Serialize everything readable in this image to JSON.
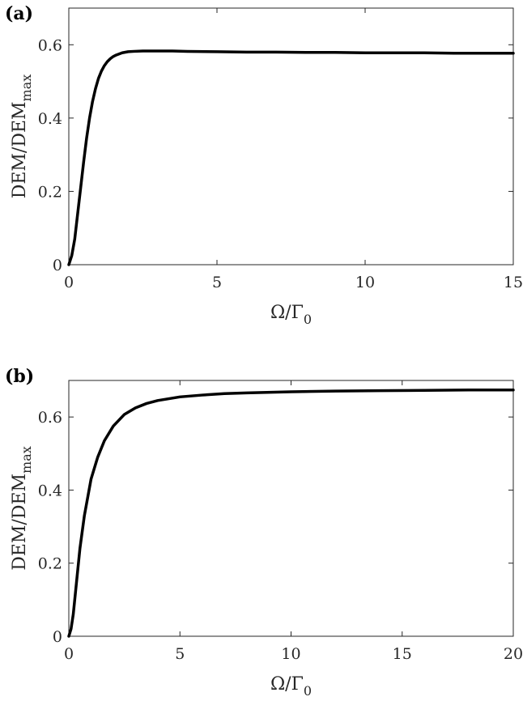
{
  "chart_data": [
    {
      "type": "line",
      "panel_label": "(a)",
      "xlabel": {
        "main": "Ω/Γ",
        "sub": "0"
      },
      "ylabel": {
        "main": "DEM/DEM",
        "sub": "max"
      },
      "xlim": [
        0,
        15
      ],
      "ylim": [
        0,
        0.7
      ],
      "xticks": [
        0,
        5,
        10,
        15
      ],
      "xtick_labels": [
        "0",
        "5",
        "10",
        "15"
      ],
      "yticks": [
        0,
        0.2,
        0.4,
        0.6
      ],
      "ytick_labels": [
        "0",
        "0.2",
        "0.4",
        "0.6"
      ],
      "grid": false,
      "series": [
        {
          "color": "#000000",
          "x": [
            0,
            0.1,
            0.2,
            0.3,
            0.4,
            0.5,
            0.6,
            0.7,
            0.8,
            0.9,
            1.0,
            1.1,
            1.2,
            1.3,
            1.4,
            1.5,
            1.6,
            1.8,
            2.0,
            2.2,
            2.5,
            3.0,
            3.5,
            4,
            5,
            6,
            7,
            8,
            9,
            10,
            11,
            12,
            13,
            14,
            15
          ],
          "y": [
            0,
            0.025,
            0.07,
            0.14,
            0.21,
            0.28,
            0.345,
            0.4,
            0.445,
            0.48,
            0.508,
            0.528,
            0.543,
            0.554,
            0.562,
            0.568,
            0.572,
            0.578,
            0.581,
            0.582,
            0.583,
            0.583,
            0.583,
            0.582,
            0.581,
            0.58,
            0.58,
            0.579,
            0.579,
            0.578,
            0.578,
            0.578,
            0.577,
            0.577,
            0.577
          ]
        }
      ]
    },
    {
      "type": "line",
      "panel_label": "(b)",
      "xlabel": {
        "main": "Ω/Γ",
        "sub": "0"
      },
      "ylabel": {
        "main": "DEM/DEM",
        "sub": "max"
      },
      "xlim": [
        0,
        20
      ],
      "ylim": [
        0,
        0.7
      ],
      "xticks": [
        0,
        5,
        10,
        15,
        20
      ],
      "xtick_labels": [
        "0",
        "5",
        "10",
        "15",
        "20"
      ],
      "yticks": [
        0,
        0.2,
        0.4,
        0.6
      ],
      "ytick_labels": [
        "0",
        "0.2",
        "0.4",
        "0.6"
      ],
      "grid": false,
      "series": [
        {
          "color": "#000000",
          "x": [
            0,
            0.1,
            0.2,
            0.3,
            0.5,
            0.7,
            1.0,
            1.3,
            1.6,
            2.0,
            2.5,
            3.0,
            3.5,
            4,
            5,
            6,
            7,
            8,
            10,
            12,
            14,
            16,
            18,
            20
          ],
          "y": [
            0,
            0.02,
            0.06,
            0.12,
            0.24,
            0.33,
            0.43,
            0.49,
            0.535,
            0.575,
            0.607,
            0.625,
            0.637,
            0.645,
            0.655,
            0.66,
            0.664,
            0.666,
            0.669,
            0.671,
            0.672,
            0.673,
            0.674,
            0.674
          ]
        }
      ]
    }
  ]
}
